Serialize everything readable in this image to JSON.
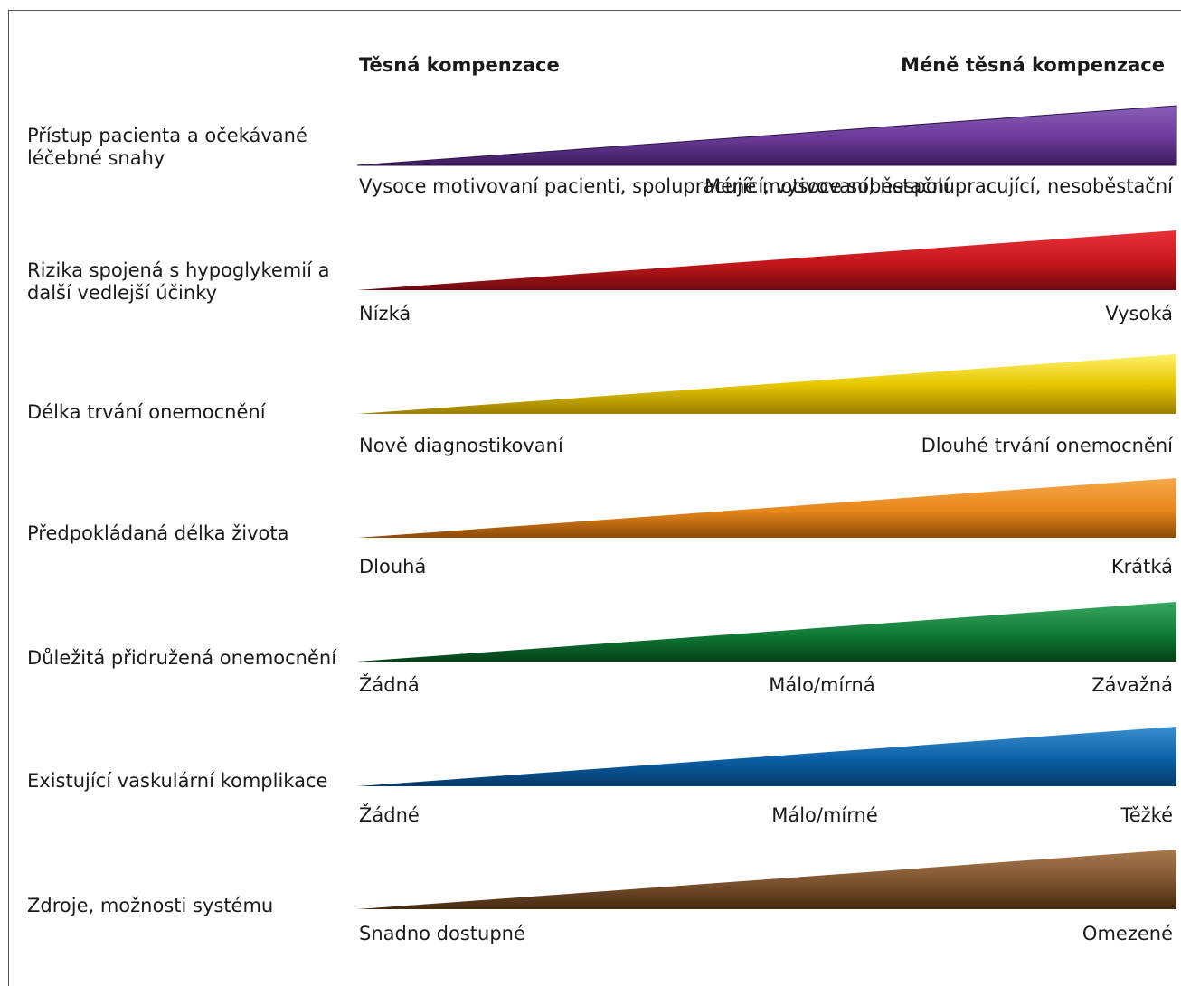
{
  "header": {
    "left": "Těsná kompenzace",
    "right": "Méně těsná kompenzace"
  },
  "rows": [
    {
      "label": "Přístup pacienta a očekávané léčebné snahy",
      "ends": [
        "Vysoce motivovaní pacienti, spolupracující, vysoce soběstační",
        "Méně motivovaní, nespolupracující, nesoběstační"
      ],
      "color": "#6a3a96"
    },
    {
      "label": "Rizika spojená s hypoglykemií a další vedlejší účinky",
      "ends": [
        "Nízká",
        "Vysoká"
      ],
      "color": "#c4161c"
    },
    {
      "label": "Délka trvání onemocnění",
      "ends": [
        "Nově diagnostikovaní",
        "Dlouhé trvání onemocnění"
      ],
      "color": "#e0c000"
    },
    {
      "label": "Předpokládaná délka života",
      "ends": [
        "Dlouhá",
        "Krátká"
      ],
      "color": "#e8861a"
    },
    {
      "label": "Důležitá přidružená onemocnění",
      "ends": [
        "Žádná",
        "Málo/mírná",
        "Závažná"
      ],
      "color": "#0f7a36"
    },
    {
      "label": "Existující vaskulární komplikace",
      "ends": [
        "Žádné",
        "Málo/mírné",
        "Těžké"
      ],
      "color": "#0b5fa5"
    },
    {
      "label": "Zdroje, možnosti systému",
      "ends": [
        "Snadno dostupné",
        "Omezené"
      ],
      "color": "#7b5230"
    }
  ]
}
